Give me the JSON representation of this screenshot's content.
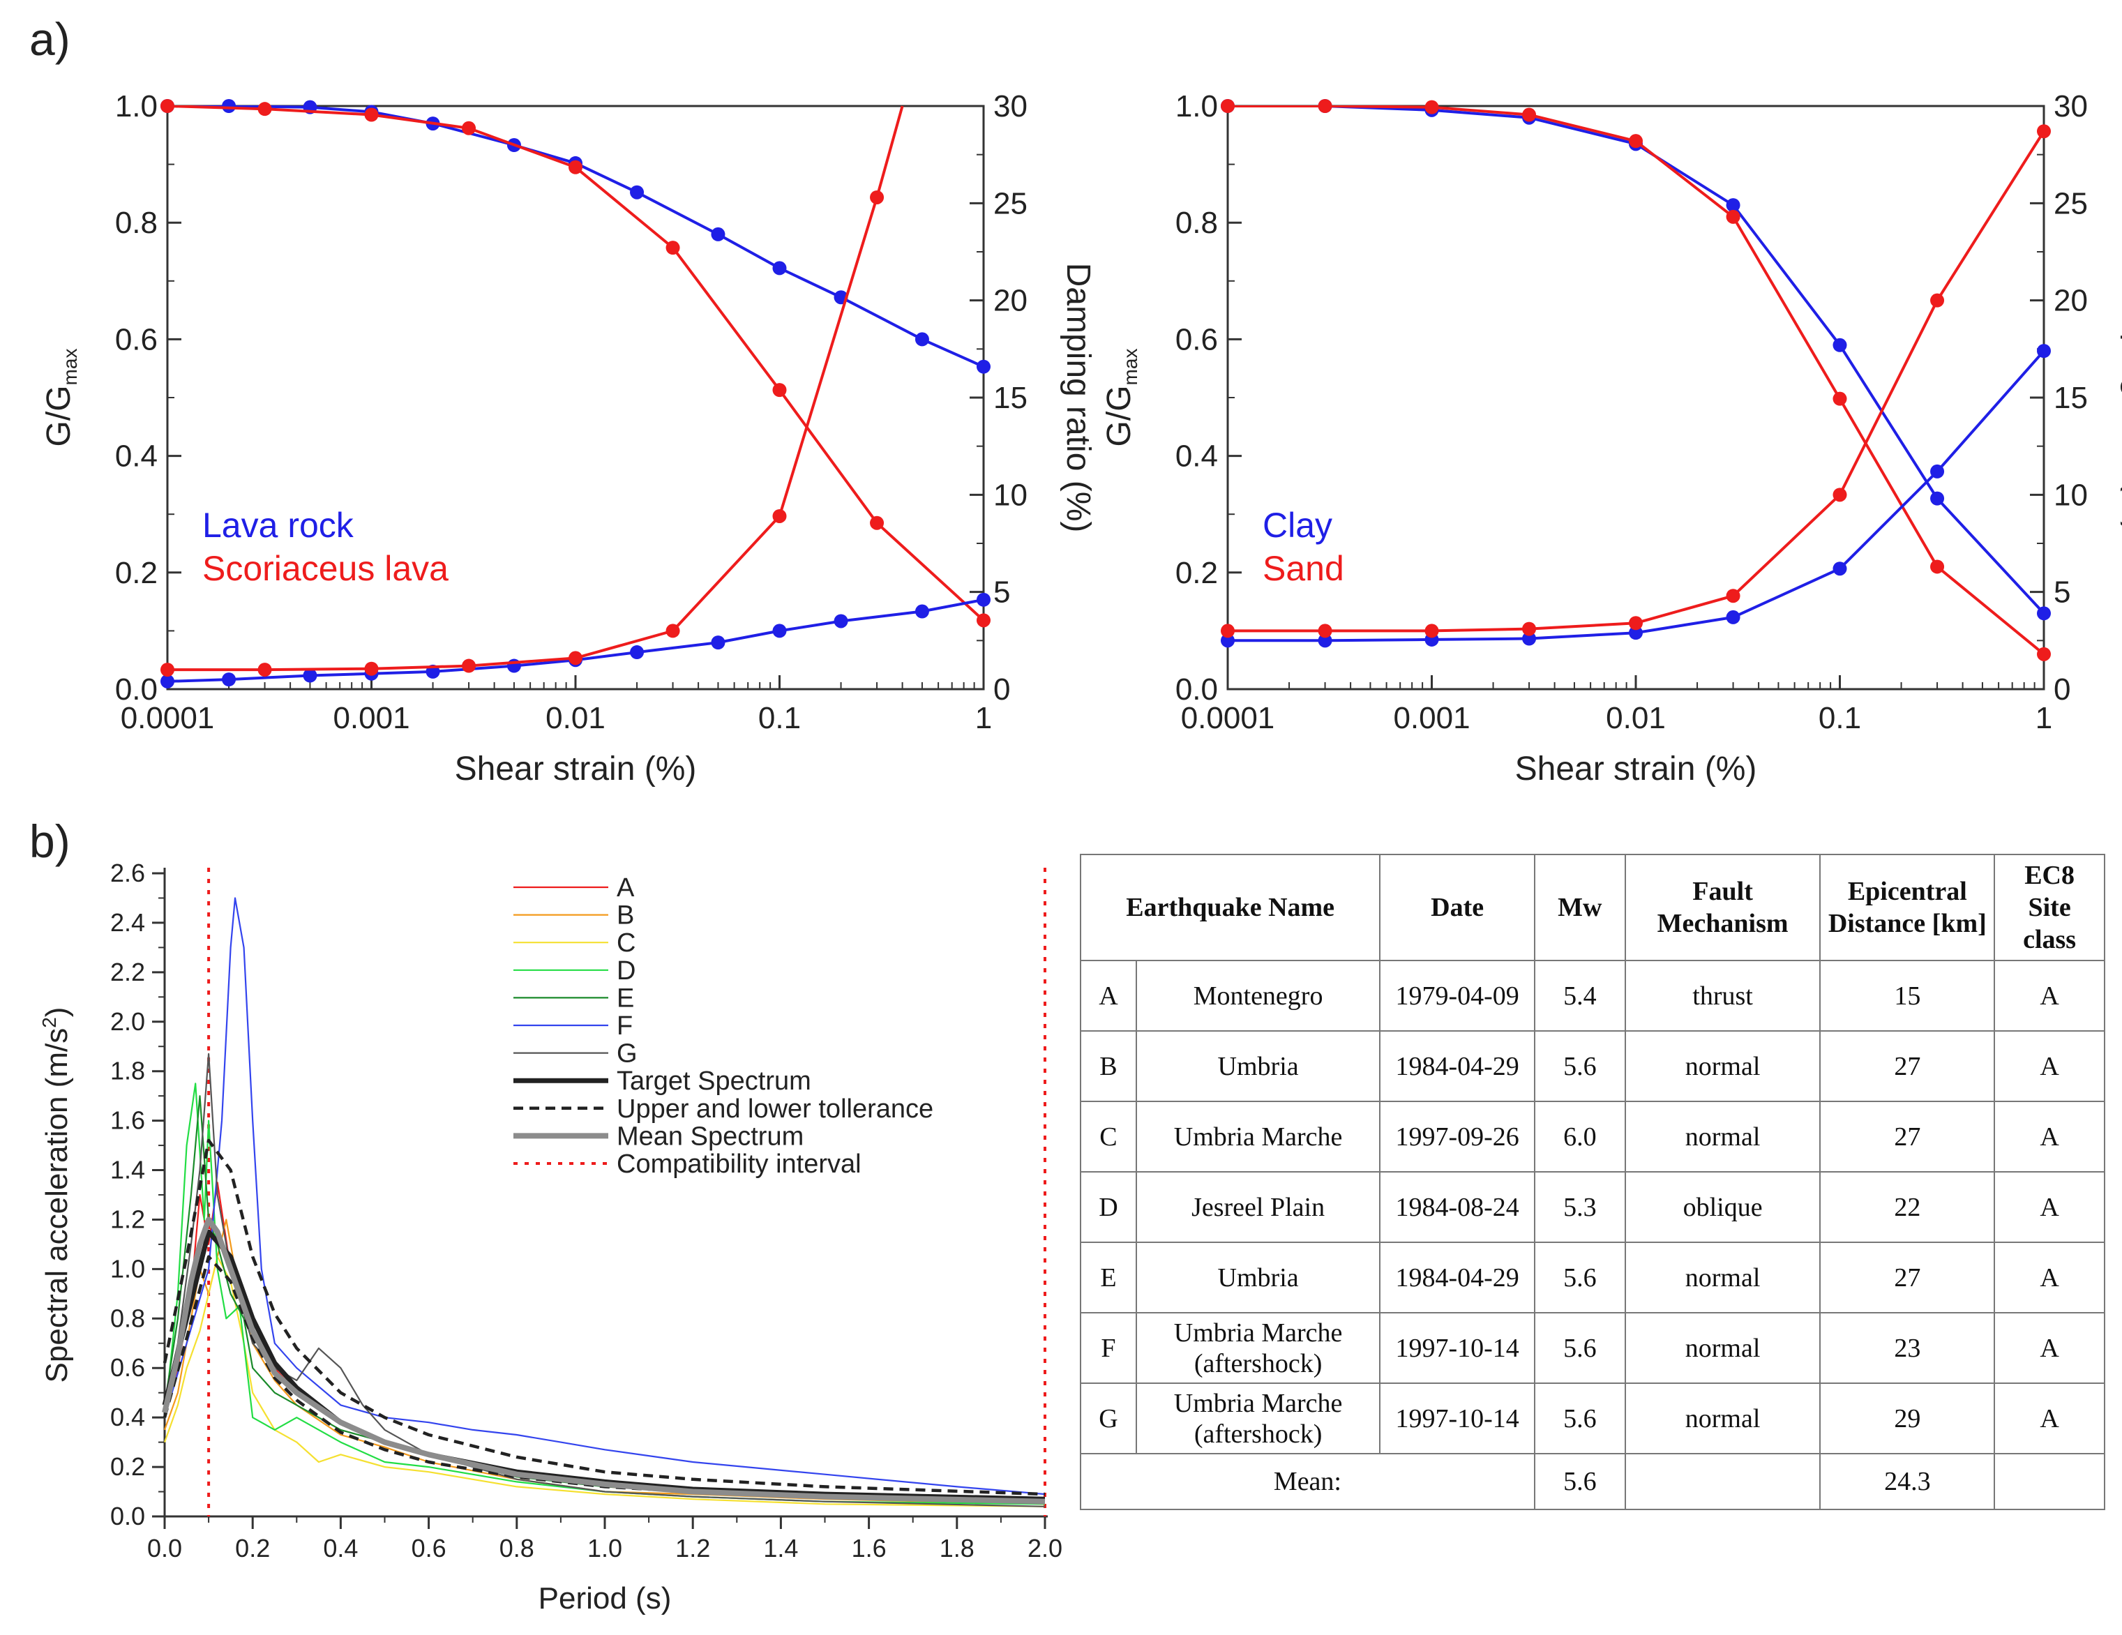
{
  "panel_labels": {
    "a": "a)",
    "b": "b)"
  },
  "chart_data": [
    {
      "id": "a-left",
      "type": "line",
      "xscale": "log",
      "xlim": [
        0.0001,
        1
      ],
      "xticks": [
        0.0001,
        0.001,
        0.01,
        0.1,
        1
      ],
      "xtick_labels": [
        "0.0001",
        "0.001",
        "0.01",
        "0.1",
        "1"
      ],
      "ylim": [
        0,
        1
      ],
      "yticks": [
        0,
        0.2,
        0.4,
        0.6,
        0.8,
        1.0
      ],
      "ytick_labels": [
        "0.0",
        "0.2",
        "0.4",
        "0.6",
        "0.8",
        "1.0"
      ],
      "y2lim": [
        0,
        30
      ],
      "y2ticks": [
        0,
        5,
        10,
        15,
        20,
        25,
        30
      ],
      "y2tick_labels": [
        "0",
        "5",
        "10",
        "15",
        "20",
        "25",
        "30"
      ],
      "xlabel": "Shear strain (%)",
      "ylabel": {
        "main": "G/G",
        "sub": "max"
      },
      "y2label": "Damping ratio (%)",
      "legend": [
        {
          "label": "Lava rock",
          "color": "#1f1fe6"
        },
        {
          "label": "Scoriaceus lava",
          "color": "#ee1c1c"
        }
      ],
      "series": [
        {
          "name": "Lava rock G/Gmax",
          "axis": "left",
          "color": "#1f1fe6",
          "x": [
            0.0001,
            0.0002,
            0.0005,
            0.001,
            0.002,
            0.005,
            0.01,
            0.02,
            0.05,
            0.1,
            0.2,
            0.5,
            1
          ],
          "y": [
            1.0,
            1.0,
            0.998,
            0.99,
            0.97,
            0.933,
            0.902,
            0.852,
            0.78,
            0.722,
            0.672,
            0.6,
            0.553
          ]
        },
        {
          "name": "Scoriaceus lava G/Gmax",
          "axis": "left",
          "color": "#ee1c1c",
          "x": [
            0.0001,
            0.0003,
            0.001,
            0.003,
            0.01,
            0.03,
            0.1,
            0.3,
            1
          ],
          "y": [
            1.0,
            0.995,
            0.985,
            0.962,
            0.895,
            0.757,
            0.513,
            0.285,
            0.118
          ]
        },
        {
          "name": "Lava rock damping",
          "axis": "right",
          "color": "#1f1fe6",
          "x": [
            0.0001,
            0.0002,
            0.0005,
            0.001,
            0.002,
            0.005,
            0.01,
            0.02,
            0.05,
            0.1,
            0.2,
            0.5,
            1
          ],
          "y": [
            0.4,
            0.5,
            0.7,
            0.8,
            0.9,
            1.2,
            1.5,
            1.9,
            2.4,
            3.0,
            3.5,
            4.0,
            4.6
          ]
        },
        {
          "name": "Scoriaceus lava damping",
          "axis": "right",
          "color": "#ee1c1c",
          "x": [
            0.0001,
            0.0003,
            0.001,
            0.003,
            0.01,
            0.03,
            0.1,
            0.3,
            0.4
          ],
          "y": [
            1.0,
            1.0,
            1.05,
            1.2,
            1.6,
            3.0,
            8.9,
            25.3,
            30.0
          ],
          "marker_count": 8
        }
      ]
    },
    {
      "id": "a-right",
      "type": "line",
      "xscale": "log",
      "xlim": [
        0.0001,
        1
      ],
      "xticks": [
        0.0001,
        0.001,
        0.01,
        0.1,
        1
      ],
      "xtick_labels": [
        "0.0001",
        "0.001",
        "0.01",
        "0.1",
        "1"
      ],
      "ylim": [
        0,
        1
      ],
      "yticks": [
        0,
        0.2,
        0.4,
        0.6,
        0.8,
        1.0
      ],
      "ytick_labels": [
        "0.0",
        "0.2",
        "0.4",
        "0.6",
        "0.8",
        "1.0"
      ],
      "y2lim": [
        0,
        30
      ],
      "y2ticks": [
        0,
        5,
        10,
        15,
        20,
        25,
        30
      ],
      "y2tick_labels": [
        "0",
        "5",
        "10",
        "15",
        "20",
        "25",
        "30"
      ],
      "xlabel": "Shear strain (%)",
      "ylabel": {
        "main": "G/G",
        "sub": "max"
      },
      "y2label": "Damping ratio (%)",
      "legend": [
        {
          "label": "Clay",
          "color": "#1f1fe6"
        },
        {
          "label": "Sand",
          "color": "#ee1c1c"
        }
      ],
      "series": [
        {
          "name": "Clay G/Gmax",
          "axis": "left",
          "color": "#1f1fe6",
          "x": [
            0.0001,
            0.0003,
            0.001,
            0.003,
            0.01,
            0.03,
            0.1,
            0.3,
            1
          ],
          "y": [
            1.0,
            1.0,
            0.993,
            0.98,
            0.935,
            0.83,
            0.59,
            0.327,
            0.13
          ]
        },
        {
          "name": "Sand G/Gmax",
          "axis": "left",
          "color": "#ee1c1c",
          "x": [
            0.0001,
            0.0003,
            0.001,
            0.003,
            0.01,
            0.03,
            0.1,
            0.3,
            1
          ],
          "y": [
            1.0,
            1.0,
            0.998,
            0.985,
            0.94,
            0.81,
            0.498,
            0.21,
            0.06
          ]
        },
        {
          "name": "Clay damping",
          "axis": "right",
          "color": "#1f1fe6",
          "x": [
            0.0001,
            0.0003,
            0.001,
            0.003,
            0.01,
            0.03,
            0.1,
            0.3,
            1
          ],
          "y": [
            2.5,
            2.5,
            2.55,
            2.6,
            2.9,
            3.7,
            6.2,
            11.2,
            17.4
          ]
        },
        {
          "name": "Sand damping",
          "axis": "right",
          "color": "#ee1c1c",
          "x": [
            0.0001,
            0.0003,
            0.001,
            0.003,
            0.01,
            0.03,
            0.1,
            0.3,
            1
          ],
          "y": [
            3.0,
            3.0,
            3.0,
            3.1,
            3.4,
            4.8,
            10.0,
            20.0,
            28.7
          ]
        }
      ]
    },
    {
      "id": "b",
      "type": "line",
      "xlim": [
        0,
        2
      ],
      "xticks": [
        0,
        0.2,
        0.4,
        0.6,
        0.8,
        1.0,
        1.2,
        1.4,
        1.6,
        1.8,
        2.0
      ],
      "xtick_labels": [
        "0.0",
        "0.2",
        "0.4",
        "0.6",
        "0.8",
        "1.0",
        "1.2",
        "1.4",
        "1.6",
        "1.8",
        "2.0"
      ],
      "ylim": [
        0,
        2.6
      ],
      "yticks": [
        0,
        0.2,
        0.4,
        0.6,
        0.8,
        1.0,
        1.2,
        1.4,
        1.6,
        1.8,
        2.0,
        2.2,
        2.4,
        2.6
      ],
      "ytick_labels": [
        "0.0",
        "0.2",
        "0.4",
        "0.6",
        "0.8",
        "1.0",
        "1.2",
        "1.4",
        "1.6",
        "1.8",
        "2.0",
        "2.2",
        "2.4",
        "2.6"
      ],
      "xlabel": "Period (s)",
      "ylabel": {
        "main": "Spectral acceleration (m/s",
        "sup": "2",
        "end": ")"
      },
      "compatibility_interval": [
        0.1,
        2.0
      ],
      "series": [
        {
          "name": "A",
          "color": "#ee1c1c",
          "style": "thin",
          "x": [
            0,
            0.03,
            0.06,
            0.08,
            0.1,
            0.12,
            0.15,
            0.2,
            0.25,
            0.3,
            0.4,
            0.5,
            0.6,
            0.8,
            1.0,
            1.2,
            1.5,
            2.0
          ],
          "y": [
            0.4,
            0.6,
            0.9,
            1.3,
            1.1,
            1.35,
            1.0,
            0.75,
            0.6,
            0.5,
            0.38,
            0.3,
            0.25,
            0.17,
            0.12,
            0.1,
            0.08,
            0.06
          ]
        },
        {
          "name": "B",
          "color": "#f39a1c",
          "style": "thin",
          "x": [
            0,
            0.03,
            0.06,
            0.08,
            0.1,
            0.12,
            0.14,
            0.17,
            0.2,
            0.25,
            0.3,
            0.4,
            0.5,
            0.6,
            0.8,
            1.0,
            1.2,
            1.5,
            2.0
          ],
          "y": [
            0.35,
            0.5,
            0.8,
            1.0,
            0.9,
            1.05,
            1.2,
            0.9,
            0.7,
            0.55,
            0.45,
            0.33,
            0.28,
            0.22,
            0.15,
            0.1,
            0.09,
            0.07,
            0.05
          ]
        },
        {
          "name": "C",
          "color": "#f5e030",
          "style": "thin",
          "x": [
            0,
            0.03,
            0.05,
            0.08,
            0.1,
            0.12,
            0.15,
            0.18,
            0.2,
            0.25,
            0.3,
            0.35,
            0.4,
            0.5,
            0.6,
            0.8,
            1.0,
            1.2,
            1.5,
            2.0
          ],
          "y": [
            0.3,
            0.45,
            0.6,
            0.75,
            0.9,
            1.05,
            0.95,
            0.7,
            0.5,
            0.35,
            0.3,
            0.22,
            0.25,
            0.2,
            0.18,
            0.12,
            0.09,
            0.07,
            0.05,
            0.04
          ]
        },
        {
          "name": "D",
          "color": "#22dd44",
          "style": "thin",
          "x": [
            0,
            0.03,
            0.05,
            0.07,
            0.09,
            0.1,
            0.12,
            0.14,
            0.17,
            0.2,
            0.25,
            0.3,
            0.4,
            0.5,
            0.6,
            0.8,
            1.0,
            1.2,
            1.5,
            2.0
          ],
          "y": [
            0.4,
            0.9,
            1.5,
            1.75,
            1.2,
            1.6,
            1.0,
            0.8,
            0.85,
            0.4,
            0.35,
            0.4,
            0.3,
            0.22,
            0.2,
            0.14,
            0.1,
            0.08,
            0.06,
            0.05
          ]
        },
        {
          "name": "E",
          "color": "#1a8a2a",
          "style": "thin",
          "x": [
            0,
            0.03,
            0.06,
            0.08,
            0.1,
            0.12,
            0.15,
            0.18,
            0.2,
            0.25,
            0.3,
            0.4,
            0.5,
            0.6,
            0.8,
            1.0,
            1.2,
            1.5,
            2.0
          ],
          "y": [
            0.45,
            0.8,
            1.3,
            1.7,
            1.2,
            1.1,
            0.9,
            0.8,
            0.6,
            0.5,
            0.45,
            0.35,
            0.3,
            0.25,
            0.16,
            0.12,
            0.1,
            0.08,
            0.06
          ]
        },
        {
          "name": "F",
          "color": "#3344ee",
          "style": "thin",
          "x": [
            0,
            0.05,
            0.1,
            0.13,
            0.15,
            0.16,
            0.18,
            0.2,
            0.22,
            0.25,
            0.3,
            0.4,
            0.5,
            0.6,
            0.7,
            0.8,
            0.9,
            1.0,
            1.2,
            1.5,
            1.8,
            2.0
          ],
          "y": [
            0.4,
            0.7,
            1.0,
            1.6,
            2.3,
            2.5,
            2.3,
            1.6,
            1.0,
            0.7,
            0.6,
            0.45,
            0.4,
            0.38,
            0.35,
            0.33,
            0.3,
            0.27,
            0.22,
            0.17,
            0.12,
            0.09
          ]
        },
        {
          "name": "G",
          "color": "#555555",
          "style": "thin",
          "x": [
            0,
            0.03,
            0.06,
            0.08,
            0.1,
            0.12,
            0.15,
            0.2,
            0.25,
            0.3,
            0.35,
            0.4,
            0.45,
            0.5,
            0.6,
            0.8,
            1.0,
            1.2,
            1.5,
            2.0
          ],
          "y": [
            0.45,
            0.7,
            1.1,
            1.4,
            1.87,
            1.3,
            1.0,
            0.7,
            0.6,
            0.55,
            0.68,
            0.6,
            0.45,
            0.35,
            0.25,
            0.15,
            0.1,
            0.08,
            0.06,
            0.04
          ]
        },
        {
          "name": "Target Spectrum",
          "color": "#222222",
          "style": "thick",
          "x": [
            0,
            0.05,
            0.1,
            0.15,
            0.2,
            0.25,
            0.3,
            0.4,
            0.5,
            0.6,
            0.8,
            1.0,
            1.2,
            1.5,
            2.0
          ],
          "y": [
            0.45,
            0.8,
            1.15,
            1.05,
            0.8,
            0.62,
            0.52,
            0.38,
            0.3,
            0.25,
            0.18,
            0.14,
            0.11,
            0.09,
            0.07
          ]
        },
        {
          "name": "Upper and lower tollerance",
          "color": "#222222",
          "style": "dashed",
          "x": [
            0,
            0.05,
            0.1,
            0.15,
            0.2,
            0.25,
            0.3,
            0.4,
            0.5,
            0.6,
            0.8,
            1.0,
            1.2,
            1.5,
            2.0
          ],
          "y": [
            0.62,
            1.05,
            1.52,
            1.4,
            1.05,
            0.82,
            0.68,
            0.5,
            0.4,
            0.33,
            0.24,
            0.18,
            0.15,
            0.12,
            0.09
          ]
        },
        {
          "name": "Upper and lower tollerance (lower)",
          "color": "#222222",
          "style": "dashed",
          "x": [
            0,
            0.05,
            0.1,
            0.15,
            0.2,
            0.25,
            0.3,
            0.4,
            0.5,
            0.6,
            0.8,
            1.0,
            1.2,
            1.5,
            2.0
          ],
          "y": [
            0.4,
            0.72,
            1.05,
            0.95,
            0.72,
            0.56,
            0.47,
            0.34,
            0.27,
            0.22,
            0.16,
            0.12,
            0.1,
            0.08,
            0.06
          ]
        },
        {
          "name": "Mean Spectrum",
          "color": "#8c8c8c",
          "style": "mean",
          "x": [
            0,
            0.03,
            0.06,
            0.08,
            0.1,
            0.12,
            0.15,
            0.2,
            0.25,
            0.3,
            0.4,
            0.5,
            0.6,
            0.8,
            1.0,
            1.2,
            1.5,
            2.0
          ],
          "y": [
            0.42,
            0.65,
            0.95,
            1.1,
            1.2,
            1.15,
            1.0,
            0.75,
            0.58,
            0.5,
            0.38,
            0.3,
            0.25,
            0.17,
            0.13,
            0.1,
            0.08,
            0.06
          ]
        }
      ],
      "legend": [
        {
          "label": "A",
          "color": "#ee1c1c",
          "style": "thin"
        },
        {
          "label": "B",
          "color": "#f39a1c",
          "style": "thin"
        },
        {
          "label": "C",
          "color": "#f5e030",
          "style": "thin"
        },
        {
          "label": "D",
          "color": "#22dd44",
          "style": "thin"
        },
        {
          "label": "E",
          "color": "#1a8a2a",
          "style": "thin"
        },
        {
          "label": "F",
          "color": "#3344ee",
          "style": "thin"
        },
        {
          "label": "G",
          "color": "#555555",
          "style": "thin"
        },
        {
          "label": "Target Spectrum",
          "color": "#222222",
          "style": "thick"
        },
        {
          "label": "Upper and lower tollerance",
          "color": "#222222",
          "style": "dashed"
        },
        {
          "label": "Mean Spectrum",
          "color": "#8c8c8c",
          "style": "mean"
        },
        {
          "label": "Compatibility interval",
          "color": "#ee1c1c",
          "style": "dotted"
        }
      ]
    }
  ],
  "table": {
    "headers": {
      "name": "Earthquake Name",
      "date": "Date",
      "mw": "Mw",
      "fault_l1": "Fault",
      "fault_l2": "Mechanism",
      "dist_l1": "Epicentral",
      "dist_l2": "Distance [km]",
      "ec8_l1": "EC8",
      "ec8_l2": "Site",
      "ec8_l3": "class"
    },
    "rows": [
      {
        "id": "A",
        "name1": "Montenegro",
        "name2": "",
        "date": "1979-04-09",
        "mw": "5.4",
        "fault": "thrust",
        "dist": "15",
        "ec8": "A"
      },
      {
        "id": "B",
        "name1": "Umbria",
        "name2": "",
        "date": "1984-04-29",
        "mw": "5.6",
        "fault": "normal",
        "dist": "27",
        "ec8": "A"
      },
      {
        "id": "C",
        "name1": "Umbria Marche",
        "name2": "",
        "date": "1997-09-26",
        "mw": "6.0",
        "fault": "normal",
        "dist": "27",
        "ec8": "A"
      },
      {
        "id": "D",
        "name1": "Jesreel Plain",
        "name2": "",
        "date": "1984-08-24",
        "mw": "5.3",
        "fault": "oblique",
        "dist": "22",
        "ec8": "A"
      },
      {
        "id": "E",
        "name1": "Umbria",
        "name2": "",
        "date": "1984-04-29",
        "mw": "5.6",
        "fault": "normal",
        "dist": "27",
        "ec8": "A"
      },
      {
        "id": "F",
        "name1": "Umbria Marche",
        "name2": "(aftershock)",
        "date": "1997-10-14",
        "mw": "5.6",
        "fault": "normal",
        "dist": "23",
        "ec8": "A"
      },
      {
        "id": "G",
        "name1": "Umbria Marche",
        "name2": "(aftershock)",
        "date": "1997-10-14",
        "mw": "5.6",
        "fault": "normal",
        "dist": "29",
        "ec8": "A"
      }
    ],
    "mean": {
      "label": "Mean:",
      "mw": "5.6",
      "dist": "24.3"
    }
  }
}
